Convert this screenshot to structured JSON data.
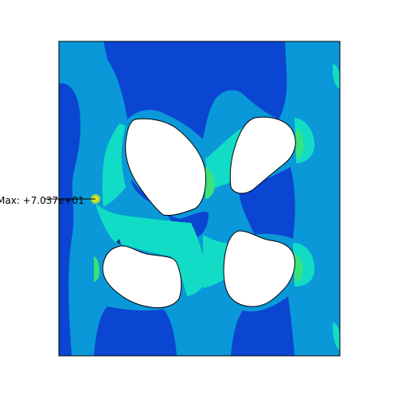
{
  "viewport": {
    "max_label": "Max: +7.037e+01"
  },
  "colors": {
    "background": "#ffffff",
    "deep_blue": "#0a46d2",
    "mid_blue": "#0a98d8",
    "cyan": "#12dcc6",
    "green": "#3ae27a",
    "yellow_green": "#a8d83a",
    "outline": "#000000",
    "hole": "#ffffff"
  }
}
